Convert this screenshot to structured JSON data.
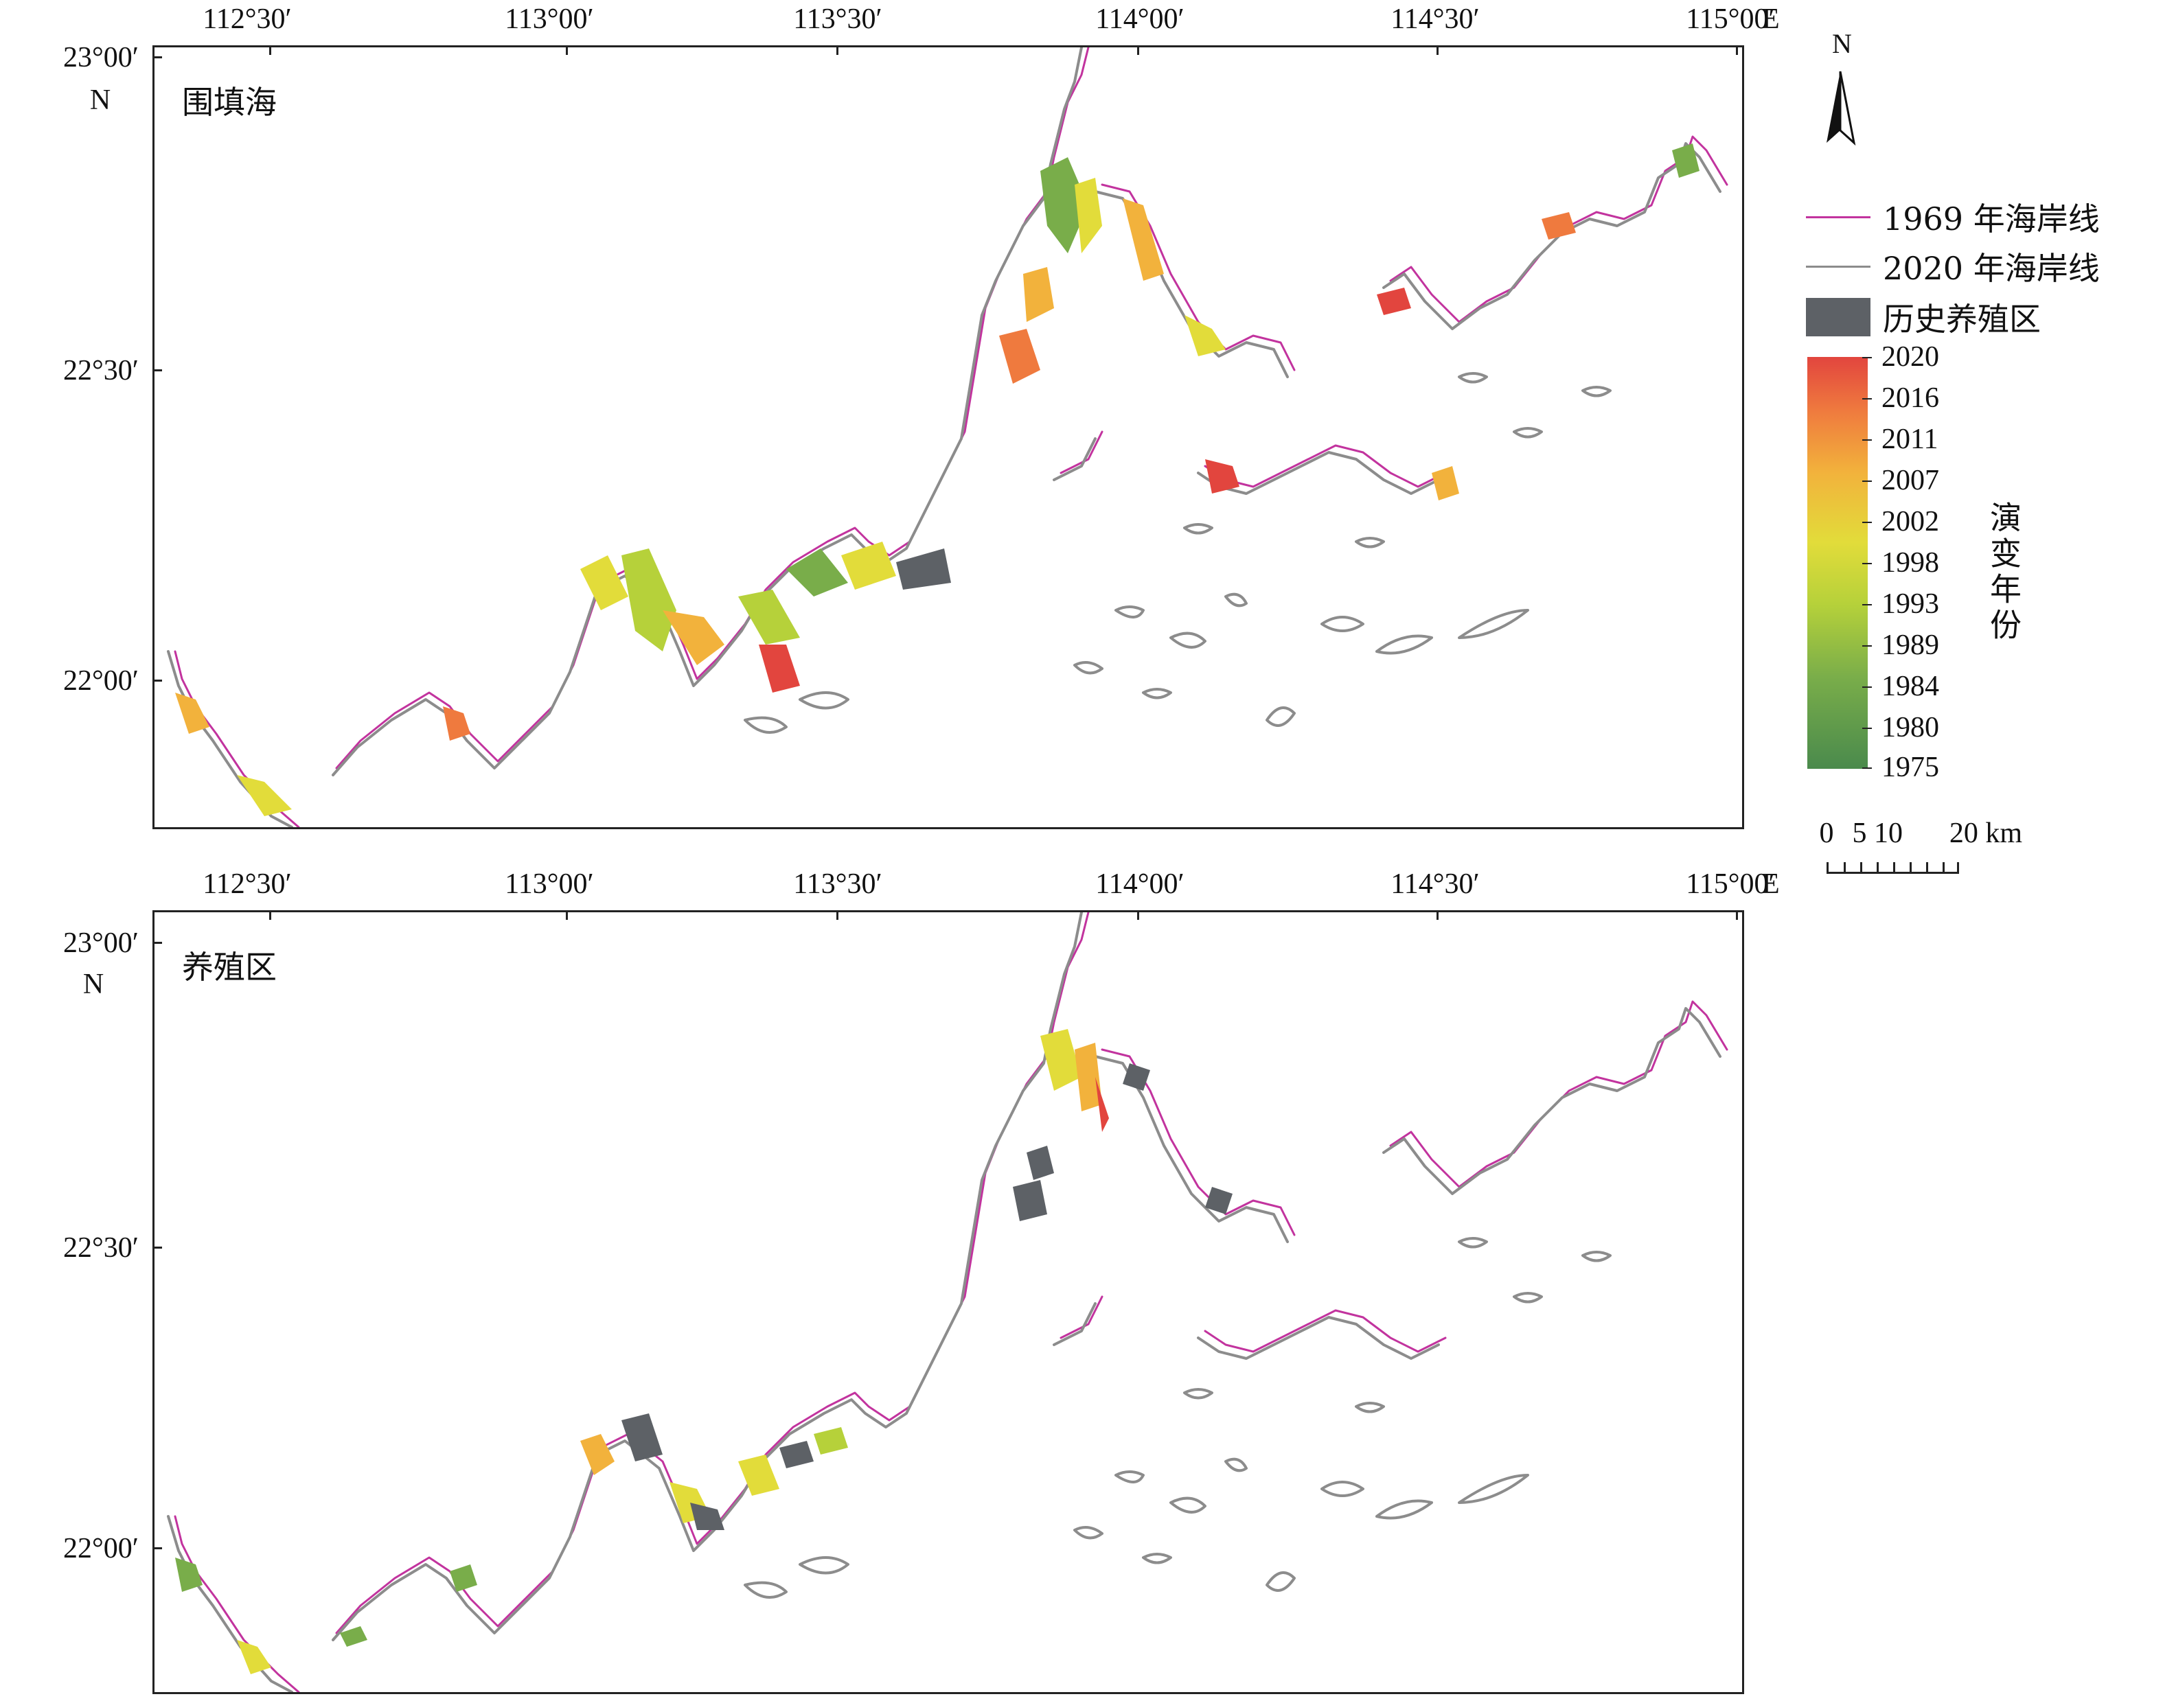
{
  "panels": [
    {
      "label": "围填海",
      "id": "reclamation"
    },
    {
      "label": "养殖区",
      "id": "aquaculture"
    }
  ],
  "axes": {
    "lon_labels": [
      "112°30′",
      "113°00′",
      "113°30′",
      "114°00′",
      "114°30′",
      "115°00′"
    ],
    "lon_suffix": "E",
    "lat_labels": [
      "23°00′",
      "22°30′",
      "22°00′"
    ],
    "lat_suffix": "N"
  },
  "north_arrow": {
    "label": "N"
  },
  "legend": {
    "shoreline_1969": {
      "label": "1969 年海岸线",
      "color": "#c2339e"
    },
    "shoreline_2020": {
      "label": "2020 年海岸线",
      "color": "#8c8c8c"
    },
    "historical_aquaculture": {
      "label": "历史养殖区",
      "color": "#5d6166"
    },
    "colorbar_title": "演变年份",
    "colorbar_ticks": [
      "2020",
      "2016",
      "2011",
      "2007",
      "2002",
      "1998",
      "1993",
      "1989",
      "1984",
      "1980",
      "1975"
    ]
  },
  "scale_bar": {
    "labels": [
      "0",
      "5",
      "10",
      "20 km"
    ]
  },
  "colors": {
    "recent": "#e2453e",
    "mid": "#e2dc3a",
    "early": "#4a8a4c",
    "frame": "#222222"
  }
}
